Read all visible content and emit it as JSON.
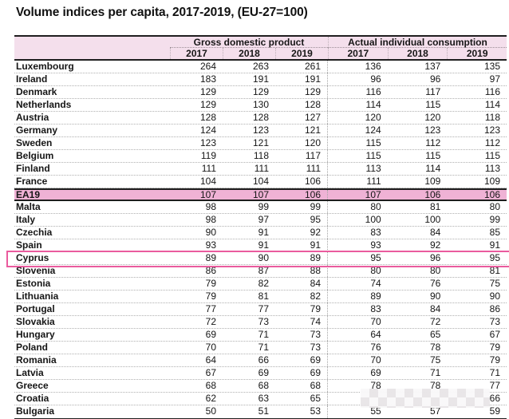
{
  "chart_data": {
    "type": "table",
    "title": "Volume indices per capita, 2017-2019, (EU-27=100)",
    "column_groups": [
      {
        "label": "Gross domestic product",
        "years": [
          "2017",
          "2018",
          "2019"
        ]
      },
      {
        "label": "Actual individual consumption",
        "years": [
          "2017",
          "2018",
          "2019"
        ]
      }
    ],
    "rows": [
      {
        "country": "Luxembourg",
        "gdp": [
          264,
          263,
          261
        ],
        "aic": [
          136,
          137,
          135
        ]
      },
      {
        "country": "Ireland",
        "gdp": [
          183,
          191,
          191
        ],
        "aic": [
          96,
          96,
          97
        ]
      },
      {
        "country": "Denmark",
        "gdp": [
          129,
          129,
          129
        ],
        "aic": [
          116,
          117,
          116
        ]
      },
      {
        "country": "Netherlands",
        "gdp": [
          129,
          130,
          128
        ],
        "aic": [
          114,
          115,
          114
        ]
      },
      {
        "country": "Austria",
        "gdp": [
          128,
          128,
          127
        ],
        "aic": [
          120,
          120,
          118
        ]
      },
      {
        "country": "Germany",
        "gdp": [
          124,
          123,
          121
        ],
        "aic": [
          124,
          123,
          123
        ]
      },
      {
        "country": "Sweden",
        "gdp": [
          123,
          121,
          120
        ],
        "aic": [
          115,
          112,
          112
        ]
      },
      {
        "country": "Belgium",
        "gdp": [
          119,
          118,
          117
        ],
        "aic": [
          115,
          115,
          115
        ]
      },
      {
        "country": "Finland",
        "gdp": [
          111,
          111,
          111
        ],
        "aic": [
          113,
          114,
          113
        ]
      },
      {
        "country": "France",
        "gdp": [
          104,
          104,
          106
        ],
        "aic": [
          111,
          109,
          109
        ]
      },
      {
        "country": "EA19",
        "gdp": [
          107,
          107,
          106
        ],
        "aic": [
          107,
          106,
          106
        ]
      },
      {
        "country": "Malta",
        "gdp": [
          98,
          99,
          99
        ],
        "aic": [
          80,
          81,
          80
        ]
      },
      {
        "country": "Italy",
        "gdp": [
          98,
          97,
          95
        ],
        "aic": [
          100,
          100,
          99
        ]
      },
      {
        "country": "Czechia",
        "gdp": [
          90,
          91,
          92
        ],
        "aic": [
          83,
          84,
          85
        ]
      },
      {
        "country": "Spain",
        "gdp": [
          93,
          91,
          91
        ],
        "aic": [
          93,
          92,
          91
        ]
      },
      {
        "country": "Cyprus",
        "gdp": [
          89,
          90,
          89
        ],
        "aic": [
          95,
          96,
          95
        ]
      },
      {
        "country": "Slovenia",
        "gdp": [
          86,
          87,
          88
        ],
        "aic": [
          80,
          80,
          81
        ]
      },
      {
        "country": "Estonia",
        "gdp": [
          79,
          82,
          84
        ],
        "aic": [
          74,
          76,
          75
        ]
      },
      {
        "country": "Lithuania",
        "gdp": [
          79,
          81,
          82
        ],
        "aic": [
          89,
          90,
          90
        ]
      },
      {
        "country": "Portugal",
        "gdp": [
          77,
          77,
          79
        ],
        "aic": [
          83,
          84,
          86
        ]
      },
      {
        "country": "Slovakia",
        "gdp": [
          72,
          73,
          74
        ],
        "aic": [
          70,
          72,
          73
        ]
      },
      {
        "country": "Hungary",
        "gdp": [
          69,
          71,
          73
        ],
        "aic": [
          64,
          65,
          67
        ]
      },
      {
        "country": "Poland",
        "gdp": [
          70,
          71,
          73
        ],
        "aic": [
          76,
          78,
          79
        ]
      },
      {
        "country": "Romania",
        "gdp": [
          64,
          66,
          69
        ],
        "aic": [
          70,
          75,
          79
        ]
      },
      {
        "country": "Latvia",
        "gdp": [
          67,
          69,
          69
        ],
        "aic": [
          69,
          71,
          71
        ]
      },
      {
        "country": "Greece",
        "gdp": [
          68,
          68,
          68
        ],
        "aic": [
          78,
          78,
          77
        ]
      },
      {
        "country": "Croatia",
        "gdp": [
          62,
          63,
          65
        ],
        "aic": [
          null,
          null,
          66
        ]
      },
      {
        "country": "Bulgaria",
        "gdp": [
          50,
          51,
          53
        ],
        "aic": [
          55,
          57,
          59
        ]
      }
    ],
    "highlighted_fill_row": "EA19",
    "outlined_row": "Cyprus",
    "censored_cells": {
      "country": "Croatia",
      "section": "Actual individual consumption",
      "years_hidden": [
        "2017",
        "2018"
      ],
      "note": "values obscured by pixelated blur patch; 2019 value partially visible"
    },
    "layout": {
      "grid": "dotted row and column separators",
      "legend": "none"
    }
  },
  "colors": {
    "header_bg": "#f4dfec",
    "ea19_row_bg": "#efb2d5",
    "cyprus_outline": "#ea5b9e",
    "table_line": "#1f1f1f",
    "dotted_grid": "#b0b0b0",
    "censor_block_dark": "#e9e6e8",
    "censor_block_light": "#f9f8f9"
  }
}
